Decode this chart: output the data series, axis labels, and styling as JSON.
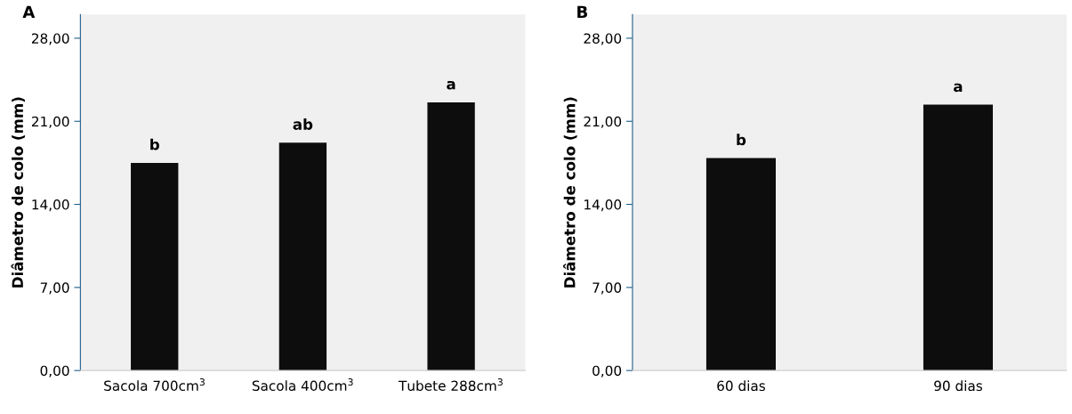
{
  "chart_data": [
    {
      "type": "bar",
      "title": "A",
      "ylabel": "Diâmetro de colo (mm)",
      "categories": [
        "Sacola 700cm$^{3}$",
        "Sacola 400cm$^{3}$",
        "Tubete 288cm$^{3}$"
      ],
      "values": [
        17.5,
        19.2,
        22.6
      ],
      "color": "#0d0d0d",
      "ylim": [
        0,
        30
      ],
      "yticks": [
        {
          "value": 0,
          "label": "0,00"
        },
        {
          "value": 7,
          "label": "7,00"
        },
        {
          "value": 14,
          "label": "14,00"
        },
        {
          "value": 21,
          "label": "21,00"
        },
        {
          "value": 28,
          "label": "28,00"
        }
      ],
      "annotations": [
        {
          "text": "b",
          "x": "Sacola 700cm$^{3}$",
          "y": 17.5
        },
        {
          "text": "ab",
          "x": "Sacola 400cm$^{3}$",
          "y": 19.2
        },
        {
          "text": "a",
          "x": "Tubete 288cm$^{3}$",
          "y": 22.6
        }
      ],
      "grid": false,
      "legend": false
    },
    {
      "type": "bar",
      "title": "B",
      "ylabel": "Diâmetro de colo (mm)",
      "categories": [
        "60 dias",
        "90 dias"
      ],
      "values": [
        17.9,
        22.4
      ],
      "color": "#0d0d0d",
      "ylim": [
        0,
        30
      ],
      "yticks": [
        {
          "value": 0,
          "label": "0,00"
        },
        {
          "value": 7,
          "label": "7,00"
        },
        {
          "value": 14,
          "label": "14,00"
        },
        {
          "value": 21,
          "label": "21,00"
        },
        {
          "value": 28,
          "label": "28,00"
        }
      ],
      "annotations": [
        {
          "text": "b",
          "x": "60 dias",
          "y": 17.9
        },
        {
          "text": "a",
          "x": "90 dias",
          "y": 22.4
        }
      ],
      "grid": false,
      "legend": false
    }
  ]
}
